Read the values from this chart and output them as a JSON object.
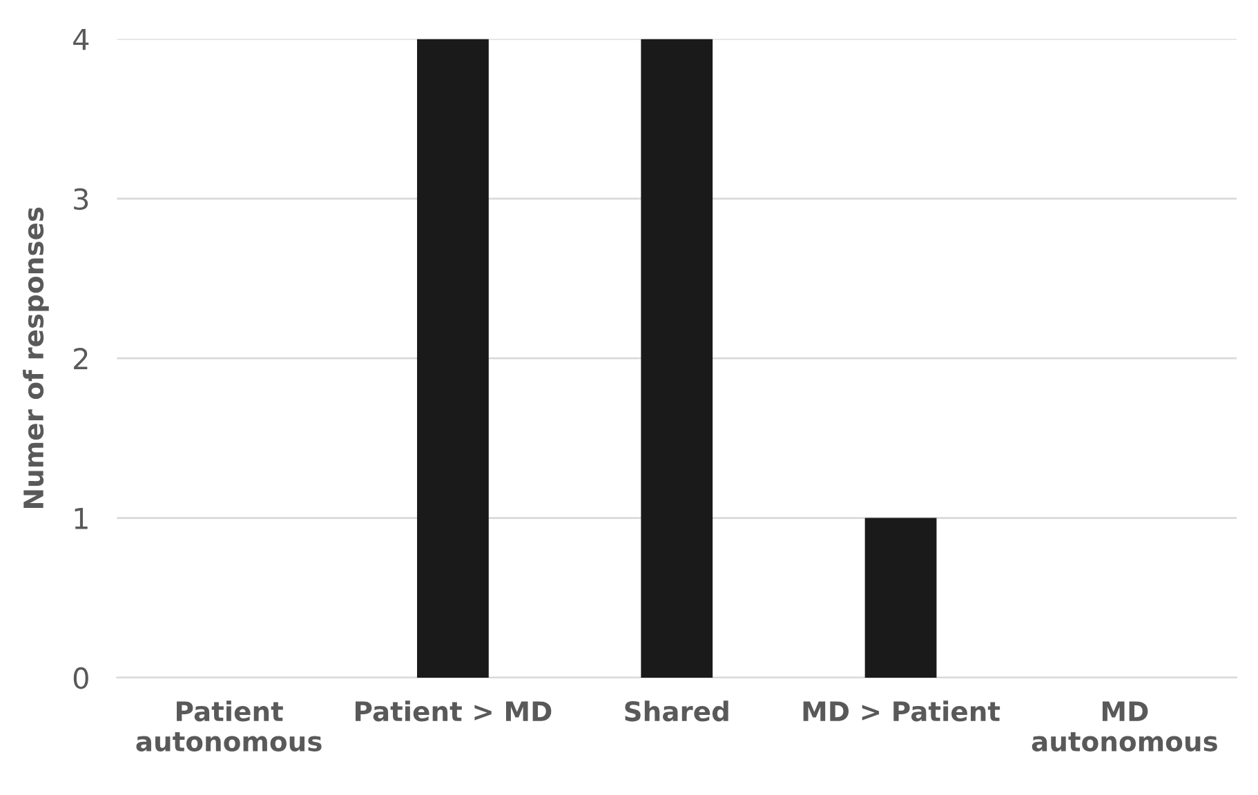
{
  "chart_data": {
    "type": "bar",
    "ylabel": "Numer of responses",
    "categories": [
      "Patient autonomous",
      "Patient > MD",
      "Shared",
      "MD > Patient",
      "MD autonomous"
    ],
    "values": [
      0,
      4,
      4,
      1,
      0
    ],
    "color": "#1a1a1a",
    "ylim": [
      0,
      4
    ],
    "yticks": [
      0,
      1,
      2,
      3,
      4
    ],
    "grid": "y",
    "legend": false
  }
}
